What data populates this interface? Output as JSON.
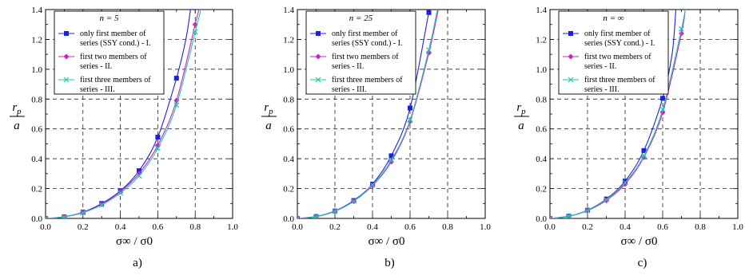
{
  "figure": {
    "x_axis_label": "σ∞ / σ0",
    "y_axis_label_num": "r",
    "y_axis_label_sub": "p",
    "y_axis_label_den": "a"
  },
  "chart_data": [
    {
      "type": "line",
      "caption": "a)",
      "legend_title": "n = 5",
      "xlim": [
        0,
        1.0
      ],
      "ylim": [
        0,
        1.4
      ],
      "xticks": [
        "0.0",
        "0.2",
        "0.4",
        "0.6",
        "0.8",
        "1.0"
      ],
      "yticks": [
        "0.0",
        "0.2",
        "0.4",
        "0.6",
        "0.8",
        "1.0",
        "1.2",
        "1.4"
      ],
      "grid": "dashed",
      "legend_position": "top-left",
      "series": [
        {
          "name": "only first member of series (SSY cond.) - I.",
          "legend_lines": [
            "only first member of",
            "series (SSY cond.) - I."
          ],
          "color": "#1f1fe0",
          "marker": "square",
          "x": [
            0,
            0.1,
            0.2,
            0.3,
            0.4,
            0.5,
            0.6,
            0.7,
            0.75,
            0.775
          ],
          "y": [
            0,
            0.011,
            0.042,
            0.1,
            0.185,
            0.32,
            0.545,
            0.94,
            1.2,
            1.4
          ],
          "marked": [
            0,
            1,
            2,
            3,
            4,
            5,
            6,
            7
          ]
        },
        {
          "name": "first two members of series - II.",
          "legend_lines": [
            "first two members of",
            "series - II."
          ],
          "color": "#cc22cc",
          "marker": "diamond",
          "x": [
            0,
            0.1,
            0.2,
            0.3,
            0.4,
            0.5,
            0.6,
            0.7,
            0.8,
            0.82
          ],
          "y": [
            0,
            0.01,
            0.04,
            0.095,
            0.18,
            0.3,
            0.49,
            0.79,
            1.3,
            1.4
          ],
          "marked": [
            0,
            1,
            2,
            3,
            4,
            5,
            6,
            7,
            8
          ]
        },
        {
          "name": "first three members of series - III.",
          "legend_lines": [
            "first three members of",
            "series - III."
          ],
          "color": "#22c8a8",
          "marker": "x",
          "x": [
            0,
            0.1,
            0.2,
            0.3,
            0.4,
            0.5,
            0.6,
            0.7,
            0.8,
            0.83
          ],
          "y": [
            0,
            0.01,
            0.038,
            0.09,
            0.17,
            0.285,
            0.47,
            0.76,
            1.25,
            1.4
          ],
          "marked": [
            0,
            1,
            2,
            3,
            4,
            5,
            6,
            7,
            8
          ]
        }
      ]
    },
    {
      "type": "line",
      "caption": "b)",
      "legend_title": "n = 25",
      "xlim": [
        0,
        1.0
      ],
      "ylim": [
        0,
        1.4
      ],
      "xticks": [
        "0.0",
        "0.2",
        "0.4",
        "0.6",
        "0.8",
        "1.0"
      ],
      "yticks": [
        "0.0",
        "0.2",
        "0.4",
        "0.6",
        "0.8",
        "1.0",
        "1.2",
        "1.4"
      ],
      "grid": "dashed",
      "legend_position": "top-left",
      "series": [
        {
          "name": "only first member of series (SSY cond.) - I.",
          "legend_lines": [
            "only first member of",
            "series (SSY cond.) - I."
          ],
          "color": "#1f1fe0",
          "marker": "square",
          "x": [
            0,
            0.1,
            0.2,
            0.3,
            0.4,
            0.5,
            0.6,
            0.7,
            0.71
          ],
          "y": [
            0,
            0.013,
            0.05,
            0.12,
            0.23,
            0.42,
            0.74,
            1.38,
            1.4
          ],
          "marked": [
            0,
            1,
            2,
            3,
            4,
            5,
            6,
            7
          ]
        },
        {
          "name": "first two members of series - II.",
          "legend_lines": [
            "first two members of",
            "series - II."
          ],
          "color": "#cc22cc",
          "marker": "diamond",
          "x": [
            0,
            0.1,
            0.2,
            0.3,
            0.4,
            0.5,
            0.6,
            0.7,
            0.75
          ],
          "y": [
            0,
            0.012,
            0.048,
            0.115,
            0.22,
            0.38,
            0.65,
            1.11,
            1.4
          ],
          "marked": [
            0,
            1,
            2,
            3,
            4,
            5,
            6,
            7
          ]
        },
        {
          "name": "first three members of series - III.",
          "legend_lines": [
            "first three members of",
            "series - III."
          ],
          "color": "#22c8a8",
          "marker": "x",
          "x": [
            0,
            0.1,
            0.2,
            0.3,
            0.4,
            0.5,
            0.6,
            0.7,
            0.745
          ],
          "y": [
            0,
            0.012,
            0.047,
            0.115,
            0.225,
            0.39,
            0.66,
            1.13,
            1.4
          ],
          "marked": [
            0,
            1,
            2,
            3,
            4,
            5,
            6,
            7
          ]
        }
      ]
    },
    {
      "type": "line",
      "caption": "c)",
      "legend_title": "n = ∞",
      "xlim": [
        0,
        1.0
      ],
      "ylim": [
        0,
        1.4
      ],
      "xticks": [
        "0.0",
        "0.2",
        "0.4",
        "0.6",
        "0.8",
        "1.0"
      ],
      "yticks": [
        "0.0",
        "0.2",
        "0.4",
        "0.6",
        "0.8",
        "1.0",
        "1.2",
        "1.4"
      ],
      "grid": "dashed",
      "legend_position": "top-left",
      "series": [
        {
          "name": "only first member of series (SSY cond.) - I.",
          "legend_lines": [
            "only first member of",
            "series (SSY cond.) - I."
          ],
          "color": "#1f1fe0",
          "marker": "square",
          "x": [
            0,
            0.1,
            0.2,
            0.3,
            0.4,
            0.5,
            0.6,
            0.65,
            0.67
          ],
          "y": [
            0,
            0.015,
            0.055,
            0.13,
            0.25,
            0.455,
            0.805,
            1.1,
            1.4
          ],
          "marked": [
            0,
            1,
            2,
            3,
            4,
            5,
            6
          ]
        },
        {
          "name": "first two members of series - II.",
          "legend_lines": [
            "first two members of",
            "series - II."
          ],
          "color": "#cc22cc",
          "marker": "diamond",
          "x": [
            0,
            0.1,
            0.2,
            0.3,
            0.4,
            0.5,
            0.6,
            0.7,
            0.72
          ],
          "y": [
            0,
            0.014,
            0.052,
            0.12,
            0.23,
            0.41,
            0.71,
            1.24,
            1.4
          ],
          "marked": [
            0,
            1,
            2,
            3,
            4,
            5,
            6,
            7
          ]
        },
        {
          "name": "first three members of series - III.",
          "legend_lines": [
            "first three members of",
            "series - III."
          ],
          "color": "#22c8a8",
          "marker": "x",
          "x": [
            0,
            0.1,
            0.2,
            0.3,
            0.4,
            0.5,
            0.6,
            0.7,
            0.72
          ],
          "y": [
            0,
            0.014,
            0.053,
            0.125,
            0.24,
            0.42,
            0.73,
            1.27,
            1.4
          ],
          "marked": [
            0,
            1,
            2,
            3,
            4,
            5,
            6,
            7
          ]
        }
      ]
    }
  ]
}
